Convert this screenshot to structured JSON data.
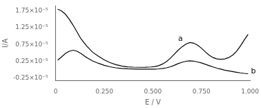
{
  "chart_data": {
    "type": "line",
    "xlabel": "E / V",
    "ylabel": "I/A",
    "xlim": [
      0.0,
      1.0
    ],
    "ylim": [
      -3.2e-06,
      1.9e-05
    ],
    "xticks": [
      0,
      {
        "value": 0.25,
        "label": "0.250"
      },
      {
        "value": 0.5,
        "label": "0.500"
      },
      {
        "value": 0.75,
        "label": "0.750"
      },
      {
        "value": 1.0,
        "label": "1.000"
      }
    ],
    "yticks": [
      {
        "value": -2.5e-06,
        "label": "-0.25×10⁻⁵"
      },
      {
        "value": 2.5e-06,
        "label": "0.25×10⁻⁵"
      },
      {
        "value": 7.5e-06,
        "label": "0.75×10⁻⁵"
      },
      {
        "value": 1.25e-05,
        "label": "1.25×10⁻⁵"
      },
      {
        "value": 1.75e-05,
        "label": "1.75×10⁻⁵"
      }
    ],
    "grid": false,
    "color": "#000000",
    "x": [
      0.01,
      0.03,
      0.05,
      0.07,
      0.09,
      0.11,
      0.13,
      0.16,
      0.19,
      0.22,
      0.25,
      0.28,
      0.31,
      0.34,
      0.37,
      0.4,
      0.43,
      0.46,
      0.49,
      0.51,
      0.53,
      0.55,
      0.57,
      0.59,
      0.61,
      0.63,
      0.65,
      0.67,
      0.69,
      0.71,
      0.73,
      0.75,
      0.77,
      0.79,
      0.81,
      0.83,
      0.85,
      0.87,
      0.89,
      0.91,
      0.93,
      0.95,
      0.97,
      0.99
    ],
    "series": [
      {
        "values": [
          1.8e-05,
          1.75e-05,
          1.65e-05,
          1.5e-05,
          1.32e-05,
          1.12e-05,
          9.2e-06,
          7e-06,
          5.2e-06,
          4e-06,
          2.9e-06,
          2.1e-06,
          1.5e-06,
          1.1e-06,
          8.5e-07,
          7.5e-07,
          7e-07,
          7.2e-07,
          8e-07,
          9.5e-07,
          1.2e-06,
          1.7e-06,
          2.4e-06,
          3.4e-06,
          4.6e-06,
          5.8e-06,
          6.8e-06,
          7.6e-06,
          8.1e-06,
          7.9e-06,
          7.3e-06,
          6.4e-06,
          5.3e-06,
          4.3e-06,
          3.6e-06,
          3.2e-06,
          3.1e-06,
          3.2e-06,
          3.6e-06,
          4.3e-06,
          5.4e-06,
          7e-06,
          8.8e-06,
          1.05e-05
        ]
      },
      {
        "values": [
          2.8e-06,
          3.8e-06,
          4.8e-06,
          5.5e-06,
          5.8e-06,
          5.5e-06,
          4.8e-06,
          3.6e-06,
          2.6e-06,
          1.9e-06,
          1.3e-06,
          8.5e-07,
          5.5e-07,
          3.8e-07,
          2.8e-07,
          2.2e-07,
          1.8e-07,
          1.6e-07,
          1.6e-07,
          1.8e-07,
          2.4e-07,
          3.6e-07,
          5.5e-07,
          8.5e-07,
          1.3e-06,
          1.8e-06,
          2.2e-06,
          2.5e-06,
          2.65e-06,
          2.55e-06,
          2.3e-06,
          2e-06,
          1.6e-06,
          1.2e-06,
          8e-07,
          4.5e-07,
          1.5e-07,
          -1.5e-07,
          -3.5e-07,
          -5.5e-07,
          -7.5e-07,
          -9.5e-07,
          -1.1e-06,
          -1.2e-06
        ]
      }
    ],
    "annotations": [
      {
        "text": "a",
        "x": 0.63,
        "y": 8.6e-06
      },
      {
        "text": "b",
        "x": 1.005,
        "y": -1.1e-06
      }
    ]
  }
}
